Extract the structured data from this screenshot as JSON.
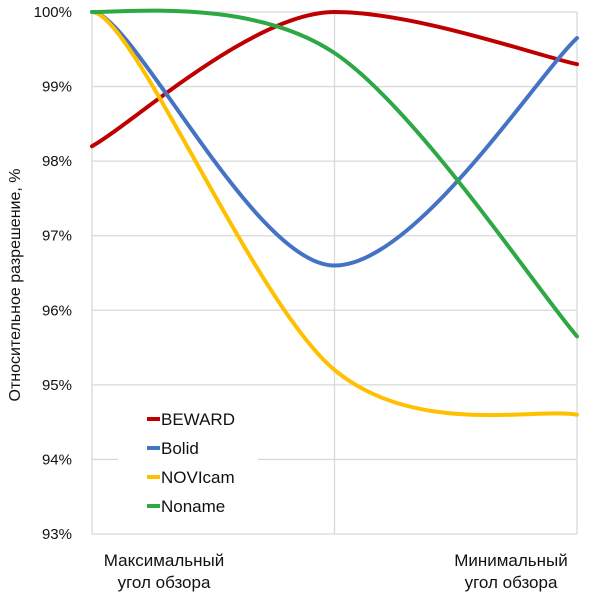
{
  "chart_data": {
    "type": "line",
    "title": "",
    "xlabel": "",
    "ylabel": "Относительное разрешение, %",
    "categories": [
      [
        "Максимальный",
        "угол обзора"
      ],
      "",
      [
        "Минимальный",
        "угол обзора"
      ]
    ],
    "ylim": [
      93,
      100
    ],
    "y_ticks": [
      "93%",
      "94%",
      "95%",
      "96%",
      "97%",
      "98%",
      "99%",
      "100%"
    ],
    "grid": true,
    "legend_position": "bottom-left inside plot",
    "smooth": true,
    "series": [
      {
        "name": "BEWARD",
        "color": "#C00000",
        "values": [
          98.2,
          100.0,
          99.3
        ]
      },
      {
        "name": "Bolid",
        "color": "#4472C4",
        "values": [
          100.0,
          96.6,
          99.65
        ]
      },
      {
        "name": "NOVIcam",
        "color": "#FFC000",
        "values": [
          100.0,
          95.2,
          94.6
        ]
      },
      {
        "name": "Noname",
        "color": "#2DA845",
        "values": [
          100.0,
          99.45,
          95.65
        ]
      }
    ]
  }
}
